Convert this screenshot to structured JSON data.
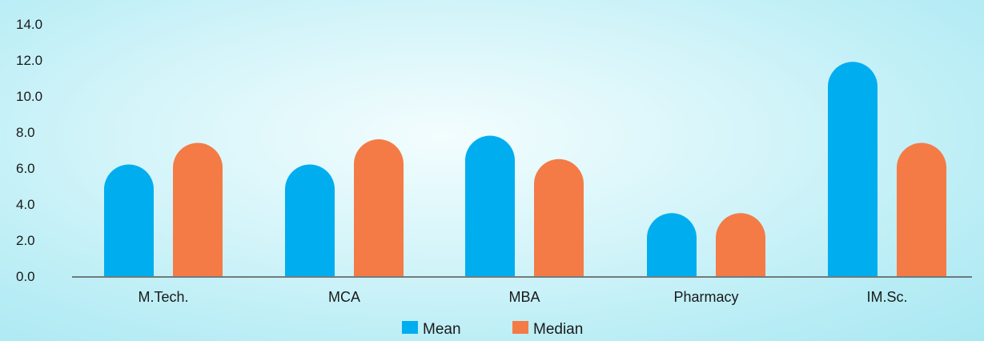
{
  "chart_data": {
    "type": "bar",
    "categories": [
      "M.Tech.",
      "MCA",
      "MBA",
      "Pharmacy",
      "IM.Sc."
    ],
    "series": [
      {
        "name": "Mean",
        "color": "#00aeef",
        "values": [
          6.2,
          6.2,
          7.8,
          3.5,
          11.9
        ]
      },
      {
        "name": "Median",
        "color": "#f47b46",
        "values": [
          7.4,
          7.6,
          6.5,
          3.5,
          7.4
        ]
      }
    ],
    "ylim": [
      0,
      14
    ],
    "yticks": [
      "0.0",
      "2.0",
      "4.0",
      "6.0",
      "8.0",
      "10.0",
      "12.0",
      "14.0"
    ],
    "legend_position": "bottom-center",
    "axis_color": "#555555"
  }
}
